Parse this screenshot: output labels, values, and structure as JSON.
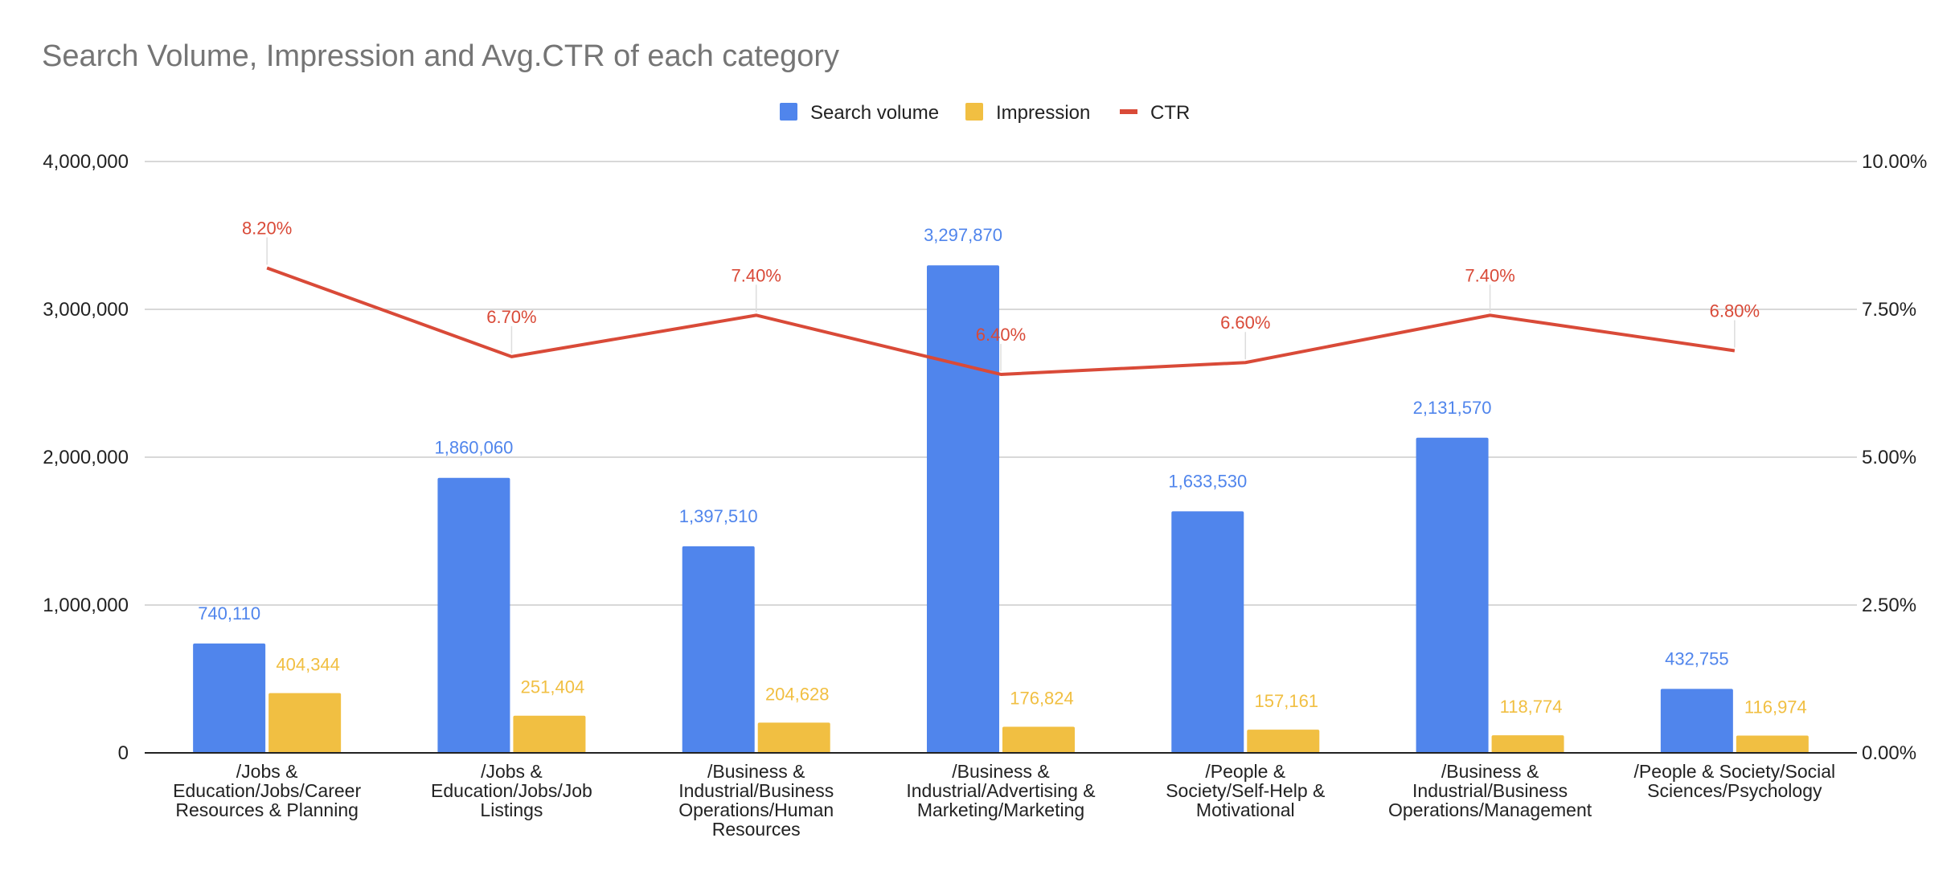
{
  "chart_data": {
    "type": "bar",
    "title": "Search Volume, Impression and Avg.CTR of each category",
    "categories": [
      "/Jobs & Education/Jobs/Career Resources & Planning",
      "/Jobs & Education/Jobs/Job Listings",
      "/Business & Industrial/Business Operations/Human Resources",
      "/Business & Industrial/Advertising & Marketing/Marketing",
      "/People & Society/Self-Help & Motivational",
      "/Business & Industrial/Business Operations/Management",
      "/People & Society/Social Sciences/Psychology"
    ],
    "category_lines": [
      [
        "/Jobs &",
        "Education/Jobs/Career",
        "Resources & Planning"
      ],
      [
        "/Jobs &",
        "Education/Jobs/Job",
        "Listings"
      ],
      [
        "/Business &",
        "Industrial/Business",
        "Operations/Human",
        "Resources"
      ],
      [
        "/Business &",
        "Industrial/Advertising &",
        "Marketing/Marketing"
      ],
      [
        "/People &",
        "Society/Self-Help &",
        "Motivational"
      ],
      [
        "/Business &",
        "Industrial/Business",
        "Operations/Management"
      ],
      [
        "/People & Society/Social",
        "Sciences/Psychology"
      ]
    ],
    "series": [
      {
        "name": "Search volume",
        "kind": "bar",
        "axis": "left",
        "color": "#5085EC",
        "values": [
          740110,
          1860060,
          1397510,
          3297870,
          1633530,
          2131570,
          432755
        ],
        "labels": [
          "740,110",
          "1,860,060",
          "1,397,510",
          "3,297,870",
          "1,633,530",
          "2,131,570",
          "432,755"
        ]
      },
      {
        "name": "Impression",
        "kind": "bar",
        "axis": "left",
        "color": "#F1BF42",
        "values": [
          404344,
          251404,
          204628,
          176824,
          157161,
          118774,
          116974
        ],
        "labels": [
          "404,344",
          "251,404",
          "204,628",
          "176,824",
          "157,161",
          "118,774",
          "116,974"
        ]
      },
      {
        "name": "CTR",
        "kind": "line",
        "axis": "right",
        "color": "#D94A38",
        "values": [
          8.2,
          6.7,
          7.4,
          6.4,
          6.6,
          7.4,
          6.8
        ],
        "labels": [
          "8.20%",
          "6.70%",
          "7.40%",
          "6.40%",
          "6.60%",
          "7.40%",
          "6.80%"
        ]
      }
    ],
    "y_left": {
      "ylim": [
        0,
        4000000
      ],
      "ticks": [
        0,
        1000000,
        2000000,
        3000000,
        4000000
      ],
      "tick_labels": [
        "0",
        "1,000,000",
        "2,000,000",
        "3,000,000",
        "4,000,000"
      ]
    },
    "y_right": {
      "ylim": [
        0,
        10
      ],
      "ticks": [
        0,
        2.5,
        5,
        7.5,
        10
      ],
      "tick_labels": [
        "0.00%",
        "2.50%",
        "5.00%",
        "7.50%",
        "10.00%"
      ]
    },
    "grid": true,
    "legend": "top-center"
  }
}
